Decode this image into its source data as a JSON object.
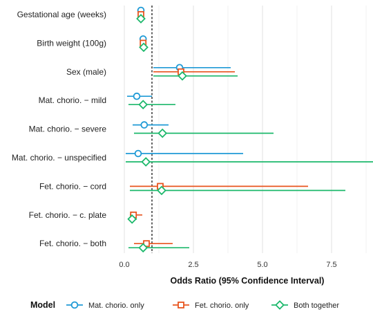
{
  "chart_data": {
    "type": "forest",
    "xlabel": "Odds Ratio (95% Confidence Interval)",
    "xlim": [
      -0.3,
      9.0
    ],
    "xticks": [
      0.0,
      2.5,
      5.0,
      7.5
    ],
    "xtick_labels": [
      "0.0",
      "2.5",
      "5.0",
      "7.5"
    ],
    "reference_line": 1,
    "grid": "vertical",
    "legend_position": "bottom",
    "legend_title": "Model",
    "categories": [
      "Gestational age (weeks)",
      "Birth weight (100g)",
      "Sex (male)",
      "Mat. chorio. − mild",
      "Mat. chorio. − severe",
      "Mat. chorio. − unspecified",
      "Fet. chorio. − cord",
      "Fet. chorio. − c. plate",
      "Fet. chorio. − both"
    ],
    "series": [
      {
        "name": "Mat. chorio. only",
        "color": "#1f9ad6",
        "marker": "circle",
        "points": [
          {
            "or": 0.6,
            "lo": 0.57,
            "hi": 0.63
          },
          {
            "or": 0.68,
            "lo": 0.65,
            "hi": 0.71
          },
          {
            "or": 2.0,
            "lo": 1.05,
            "hi": 3.85
          },
          {
            "or": 0.45,
            "lo": 0.1,
            "hi": 1.0
          },
          {
            "or": 0.72,
            "lo": 0.3,
            "hi": 1.6
          },
          {
            "or": 0.5,
            "lo": 0.05,
            "hi": 4.3
          },
          null,
          null,
          null
        ]
      },
      {
        "name": "Fet. chorio. only",
        "color": "#e8541e",
        "marker": "square",
        "points": [
          {
            "or": 0.6,
            "lo": 0.57,
            "hi": 0.63
          },
          {
            "or": 0.68,
            "lo": 0.65,
            "hi": 0.71
          },
          {
            "or": 2.05,
            "lo": 1.05,
            "hi": 4.0
          },
          null,
          null,
          null,
          {
            "or": 1.3,
            "lo": 0.2,
            "hi": 6.65
          },
          {
            "or": 0.33,
            "lo": 0.2,
            "hi": 0.65
          },
          {
            "or": 0.8,
            "lo": 0.35,
            "hi": 1.75
          }
        ]
      },
      {
        "name": "Both together",
        "color": "#1cb86b",
        "marker": "diamond",
        "points": [
          {
            "or": 0.6,
            "lo": 0.57,
            "hi": 0.63
          },
          {
            "or": 0.7,
            "lo": 0.66,
            "hi": 0.74
          },
          {
            "or": 2.1,
            "lo": 1.05,
            "hi": 4.1
          },
          {
            "or": 0.68,
            "lo": 0.15,
            "hi": 1.85
          },
          {
            "or": 1.38,
            "lo": 0.35,
            "hi": 5.4
          },
          {
            "or": 0.78,
            "lo": 0.05,
            "hi": 9.0
          },
          {
            "or": 1.35,
            "lo": 0.2,
            "hi": 8.0
          },
          {
            "or": 0.28,
            "lo": 0.15,
            "hi": 0.45
          },
          {
            "or": 0.68,
            "lo": 0.15,
            "hi": 2.35
          }
        ]
      }
    ]
  }
}
